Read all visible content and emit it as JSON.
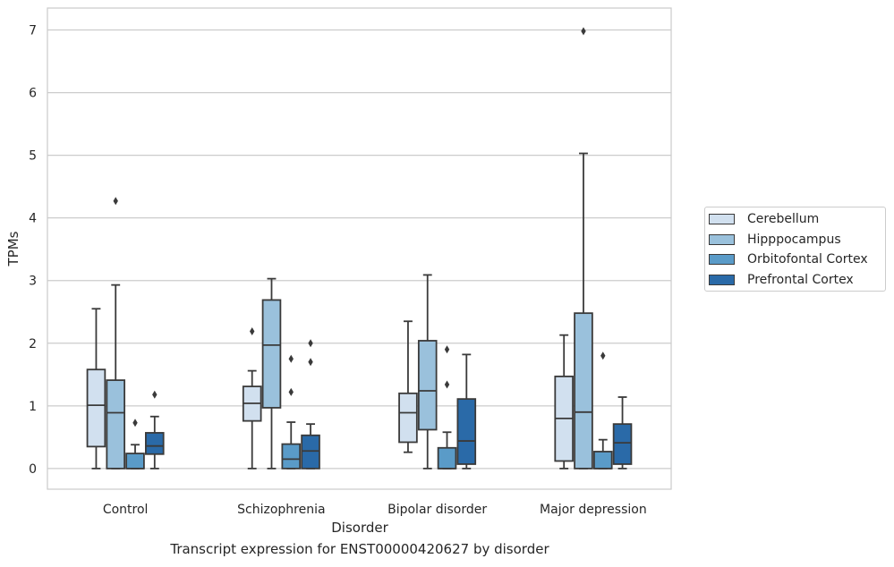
{
  "chart_data": {
    "type": "boxplot",
    "xlabel": "Disorder",
    "ylabel": "TPMs",
    "ylim": [
      -0.33,
      7.35
    ],
    "yticks": [
      0,
      1,
      2,
      3,
      4,
      5,
      6,
      7
    ],
    "grid": "horizontal",
    "legend_position": "right",
    "categories": [
      "Control",
      "Schizophrenia",
      "Bipolar disorder",
      "Major depression"
    ],
    "series": [
      {
        "name": "Cerebellum",
        "color": "#d1e0ef",
        "boxes": [
          {
            "whislo": 0,
            "q1": 0.35,
            "med": 1.01,
            "q3": 1.58,
            "whishi": 2.55,
            "fliers": []
          },
          {
            "whislo": 0,
            "q1": 0.76,
            "med": 1.04,
            "q3": 1.31,
            "whishi": 1.56,
            "fliers": [
              2.19
            ]
          },
          {
            "whislo": 0.26,
            "q1": 0.42,
            "med": 0.89,
            "q3": 1.2,
            "whishi": 2.35,
            "fliers": []
          },
          {
            "whislo": 0,
            "q1": 0.12,
            "med": 0.8,
            "q3": 1.47,
            "whishi": 2.13,
            "fliers": []
          }
        ]
      },
      {
        "name": "Hipppocampus",
        "color": "#9ac1dc",
        "boxes": [
          {
            "whislo": 0,
            "q1": 0,
            "med": 0.89,
            "q3": 1.41,
            "whishi": 2.93,
            "fliers": [
              4.27
            ]
          },
          {
            "whislo": 0,
            "q1": 0.97,
            "med": 1.97,
            "q3": 2.69,
            "whishi": 3.03,
            "fliers": []
          },
          {
            "whislo": 0,
            "q1": 0.62,
            "med": 1.24,
            "q3": 2.04,
            "whishi": 3.09,
            "fliers": []
          },
          {
            "whislo": 0,
            "q1": 0,
            "med": 0.9,
            "q3": 2.48,
            "whishi": 5.03,
            "fliers": [
              6.98
            ]
          }
        ]
      },
      {
        "name": "Orbitofontal Cortex",
        "color": "#5a9bc8",
        "boxes": [
          {
            "whislo": 0,
            "q1": 0,
            "med": 0,
            "q3": 0.24,
            "whishi": 0.38,
            "fliers": [
              0.73
            ]
          },
          {
            "whislo": 0,
            "q1": 0,
            "med": 0.15,
            "q3": 0.39,
            "whishi": 0.74,
            "fliers": [
              1.22,
              1.75
            ]
          },
          {
            "whislo": 0,
            "q1": 0,
            "med": 0,
            "q3": 0.33,
            "whishi": 0.58,
            "fliers": [
              1.34,
              1.9
            ]
          },
          {
            "whislo": 0,
            "q1": 0,
            "med": 0,
            "q3": 0.27,
            "whishi": 0.46,
            "fliers": [
              1.8
            ]
          }
        ]
      },
      {
        "name": "Prefrontal Cortex",
        "color": "#2a6aa8",
        "boxes": [
          {
            "whislo": 0,
            "q1": 0.23,
            "med": 0.36,
            "q3": 0.57,
            "whishi": 0.83,
            "fliers": [
              1.18
            ]
          },
          {
            "whislo": 0,
            "q1": 0,
            "med": 0.28,
            "q3": 0.53,
            "whishi": 0.71,
            "fliers": [
              1.7,
              2.0
            ]
          },
          {
            "whislo": 0,
            "q1": 0.07,
            "med": 0.44,
            "q3": 1.11,
            "whishi": 1.82,
            "fliers": []
          },
          {
            "whislo": 0,
            "q1": 0.07,
            "med": 0.41,
            "q3": 0.71,
            "whishi": 1.14,
            "fliers": []
          }
        ]
      }
    ]
  },
  "caption": "Transcript expression for ENST00000420627 by disorder"
}
